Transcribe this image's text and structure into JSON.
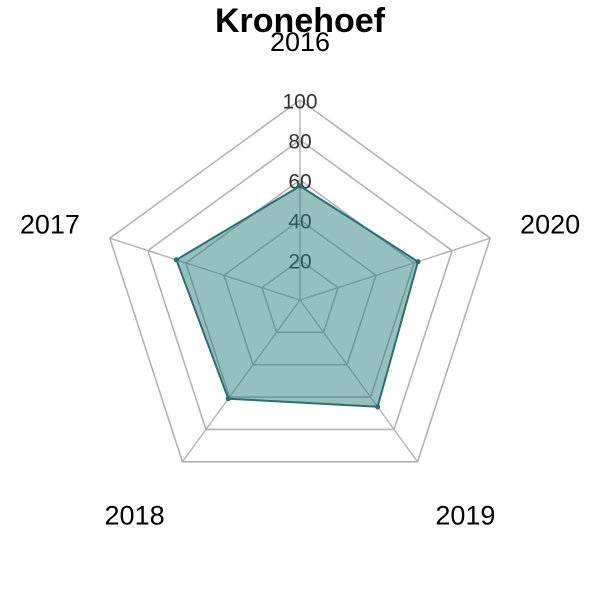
{
  "chart_data": {
    "type": "radar",
    "title": "Kronehoef",
    "categories": [
      "2016",
      "2020",
      "2019",
      "2018",
      "2017"
    ],
    "series": [
      {
        "values": [
          57,
          62,
          66,
          61,
          65
        ]
      }
    ],
    "r_ticks": [
      "20",
      "40",
      "60",
      "80",
      "100"
    ],
    "r_tick_values": [
      20,
      40,
      60,
      80,
      100
    ],
    "rlim": [
      0,
      100
    ],
    "grid": true,
    "colors": {
      "fill": "#2e7f7f",
      "fill_opacity": 0.5,
      "line": "#2a7070",
      "grid": "#b3b3b3"
    }
  }
}
